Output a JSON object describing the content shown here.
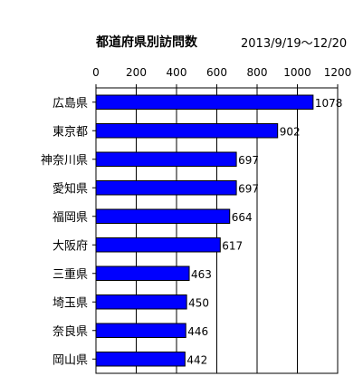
{
  "chart_data": {
    "type": "bar",
    "orientation": "horizontal",
    "title": "都道府県別訪問数",
    "subtitle": "2013/9/19～12/20",
    "categories": [
      "広島県",
      "東京都",
      "神奈川県",
      "愛知県",
      "福岡県",
      "大阪府",
      "三重県",
      "埼玉県",
      "奈良県",
      "岡山県"
    ],
    "values": [
      1078,
      902,
      697,
      697,
      664,
      617,
      463,
      450,
      446,
      442
    ],
    "xlim": [
      0,
      1200
    ],
    "x_ticks": [
      0,
      200,
      400,
      600,
      800,
      1000,
      1200
    ],
    "x_tick_labels": [
      "0",
      "200",
      "400",
      "600",
      "800",
      "1000",
      "1200"
    ],
    "x_axis_position": "top",
    "grid": true,
    "legend": "none",
    "bar_color": "#0000ff",
    "data_labels": true
  }
}
